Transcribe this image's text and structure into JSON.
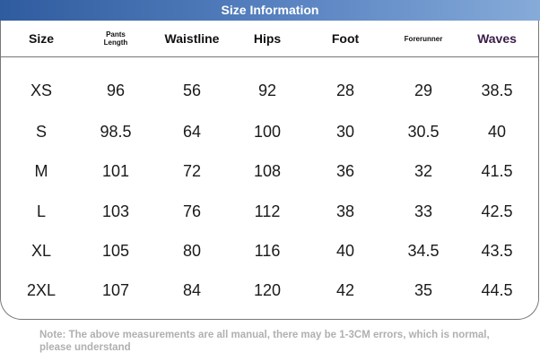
{
  "title": "Size Information",
  "headers": [
    "Size",
    "Pants Length",
    "Waistline",
    "Hips",
    "Foot",
    "Forerunner",
    "Waves"
  ],
  "rows": [
    [
      "XS",
      "96",
      "56",
      "92",
      "28",
      "29",
      "38.5"
    ],
    [
      "S",
      "98.5",
      "64",
      "100",
      "30",
      "30.5",
      "40"
    ],
    [
      "M",
      "101",
      "72",
      "108",
      "36",
      "32",
      "41.5"
    ],
    [
      "L",
      "103",
      "76",
      "112",
      "38",
      "33",
      "42.5"
    ],
    [
      "XL",
      "105",
      "80",
      "116",
      "40",
      "34.5",
      "43.5"
    ],
    [
      "2XL",
      "107",
      "84",
      "120",
      "42",
      "35",
      "44.5"
    ]
  ],
  "note": "Note: The above measurements are all manual, there may be 1-3CM errors, which is normal, please understand",
  "colors": {
    "title_gradient_start": "#2f5c9f",
    "title_gradient_end": "#86abd9",
    "waves_header": "#3a1d48",
    "note_text": "#b0b0b0",
    "border": "#777777"
  }
}
